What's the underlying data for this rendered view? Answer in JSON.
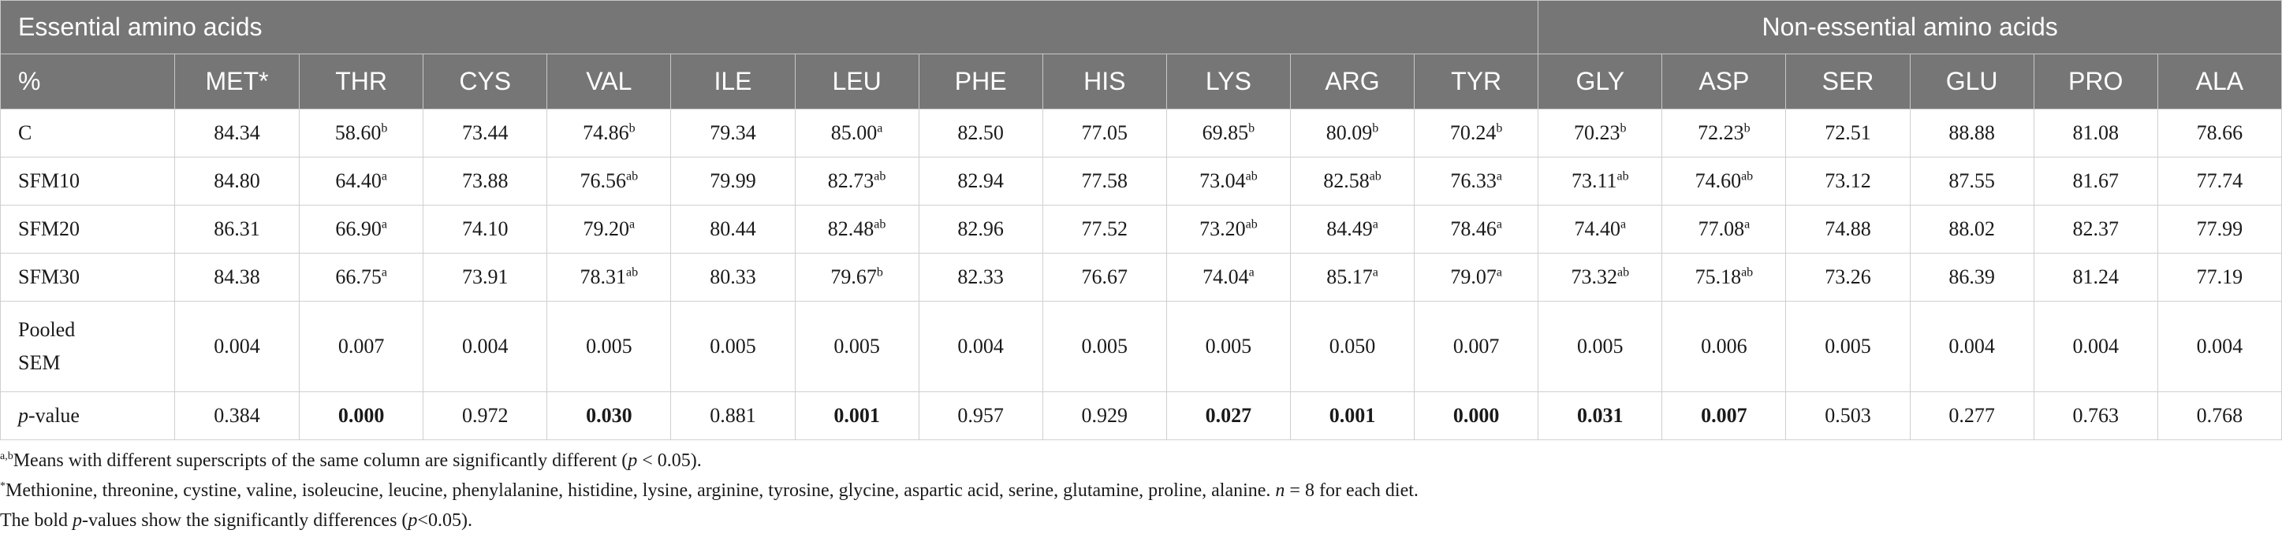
{
  "group_headers": {
    "essential": "Essential amino acids",
    "non_essential": "Non-essential amino acids"
  },
  "columns": [
    "%",
    "MET*",
    "THR",
    "CYS",
    "VAL",
    "ILE",
    "LEU",
    "PHE",
    "HIS",
    "LYS",
    "ARG",
    "TYR",
    "GLY",
    "ASP",
    "SER",
    "GLU",
    "PRO",
    "ALA"
  ],
  "rows": [
    {
      "label": "C",
      "cells": [
        {
          "v": "84.34",
          "s": ""
        },
        {
          "v": "58.60",
          "s": "b"
        },
        {
          "v": "73.44",
          "s": ""
        },
        {
          "v": "74.86",
          "s": "b"
        },
        {
          "v": "79.34",
          "s": ""
        },
        {
          "v": "85.00",
          "s": "a"
        },
        {
          "v": "82.50",
          "s": ""
        },
        {
          "v": "77.05",
          "s": ""
        },
        {
          "v": "69.85",
          "s": "b"
        },
        {
          "v": "80.09",
          "s": "b"
        },
        {
          "v": "70.24",
          "s": "b"
        },
        {
          "v": "70.23",
          "s": "b"
        },
        {
          "v": "72.23",
          "s": "b"
        },
        {
          "v": "72.51",
          "s": ""
        },
        {
          "v": "88.88",
          "s": ""
        },
        {
          "v": "81.08",
          "s": ""
        },
        {
          "v": "78.66",
          "s": ""
        }
      ]
    },
    {
      "label": "SFM10",
      "cells": [
        {
          "v": "84.80",
          "s": ""
        },
        {
          "v": "64.40",
          "s": "a"
        },
        {
          "v": "73.88",
          "s": ""
        },
        {
          "v": "76.56",
          "s": "ab"
        },
        {
          "v": "79.99",
          "s": ""
        },
        {
          "v": "82.73",
          "s": "ab"
        },
        {
          "v": "82.94",
          "s": ""
        },
        {
          "v": "77.58",
          "s": ""
        },
        {
          "v": "73.04",
          "s": "ab"
        },
        {
          "v": "82.58",
          "s": "ab"
        },
        {
          "v": "76.33",
          "s": "a"
        },
        {
          "v": "73.11",
          "s": "ab"
        },
        {
          "v": "74.60",
          "s": "ab"
        },
        {
          "v": "73.12",
          "s": ""
        },
        {
          "v": "87.55",
          "s": ""
        },
        {
          "v": "81.67",
          "s": ""
        },
        {
          "v": "77.74",
          "s": ""
        }
      ]
    },
    {
      "label": "SFM20",
      "cells": [
        {
          "v": "86.31",
          "s": ""
        },
        {
          "v": "66.90",
          "s": "a"
        },
        {
          "v": "74.10",
          "s": ""
        },
        {
          "v": "79.20",
          "s": "a"
        },
        {
          "v": "80.44",
          "s": ""
        },
        {
          "v": "82.48",
          "s": "ab"
        },
        {
          "v": "82.96",
          "s": ""
        },
        {
          "v": "77.52",
          "s": ""
        },
        {
          "v": "73.20",
          "s": "ab"
        },
        {
          "v": "84.49",
          "s": "a"
        },
        {
          "v": "78.46",
          "s": "a"
        },
        {
          "v": "74.40",
          "s": "a"
        },
        {
          "v": "77.08",
          "s": "a"
        },
        {
          "v": "74.88",
          "s": ""
        },
        {
          "v": "88.02",
          "s": ""
        },
        {
          "v": "82.37",
          "s": ""
        },
        {
          "v": "77.99",
          "s": ""
        }
      ]
    },
    {
      "label": "SFM30",
      "cells": [
        {
          "v": "84.38",
          "s": ""
        },
        {
          "v": "66.75",
          "s": "a"
        },
        {
          "v": "73.91",
          "s": ""
        },
        {
          "v": "78.31",
          "s": "ab"
        },
        {
          "v": "80.33",
          "s": ""
        },
        {
          "v": "79.67",
          "s": "b"
        },
        {
          "v": "82.33",
          "s": ""
        },
        {
          "v": "76.67",
          "s": ""
        },
        {
          "v": "74.04",
          "s": "a"
        },
        {
          "v": "85.17",
          "s": "a"
        },
        {
          "v": "79.07",
          "s": "a"
        },
        {
          "v": "73.32",
          "s": "ab"
        },
        {
          "v": "75.18",
          "s": "ab"
        },
        {
          "v": "73.26",
          "s": ""
        },
        {
          "v": "86.39",
          "s": ""
        },
        {
          "v": "81.24",
          "s": ""
        },
        {
          "v": "77.19",
          "s": ""
        }
      ]
    },
    {
      "label_line1": "Pooled",
      "label_line2": "SEM",
      "cells": [
        {
          "v": "0.004"
        },
        {
          "v": "0.007"
        },
        {
          "v": "0.004"
        },
        {
          "v": "0.005"
        },
        {
          "v": "0.005"
        },
        {
          "v": "0.005"
        },
        {
          "v": "0.004"
        },
        {
          "v": "0.005"
        },
        {
          "v": "0.005"
        },
        {
          "v": "0.050"
        },
        {
          "v": "0.007"
        },
        {
          "v": "0.005"
        },
        {
          "v": "0.006"
        },
        {
          "v": "0.005"
        },
        {
          "v": "0.004"
        },
        {
          "v": "0.004"
        },
        {
          "v": "0.004"
        }
      ]
    },
    {
      "label_italic": "p",
      "label_rest": "-value",
      "cells": [
        {
          "v": "0.384",
          "bold": false
        },
        {
          "v": "0.000",
          "bold": true
        },
        {
          "v": "0.972",
          "bold": false
        },
        {
          "v": "0.030",
          "bold": true
        },
        {
          "v": "0.881",
          "bold": false
        },
        {
          "v": "0.001",
          "bold": true
        },
        {
          "v": "0.957",
          "bold": false
        },
        {
          "v": "0.929",
          "bold": false
        },
        {
          "v": "0.027",
          "bold": true
        },
        {
          "v": "0.001",
          "bold": true
        },
        {
          "v": "0.000",
          "bold": true
        },
        {
          "v": "0.031",
          "bold": true
        },
        {
          "v": "0.007",
          "bold": true
        },
        {
          "v": "0.503",
          "bold": false
        },
        {
          "v": "0.277",
          "bold": false
        },
        {
          "v": "0.763",
          "bold": false
        },
        {
          "v": "0.768",
          "bold": false
        }
      ]
    }
  ],
  "footnotes": {
    "n1_sup": "a,b",
    "n1_text": "Means with different superscripts of the same column are significantly different (",
    "n1_p": "p",
    "n1_end": " < 0.05).",
    "n2_sup": "*",
    "n2_text": "Methionine, threonine, cystine, valine, isoleucine, leucine, phenylalanine, histidine, lysine, arginine, tyrosine, glycine, aspartic acid, serine, glutamine, proline, alanine. ",
    "n2_n": "n",
    "n2_end": " = 8 for each diet.",
    "n3_start": "The bold ",
    "n3_p": "p",
    "n3_mid": "-values show the significantly differences (",
    "n3_p2": "p",
    "n3_end": "<0.05)."
  }
}
